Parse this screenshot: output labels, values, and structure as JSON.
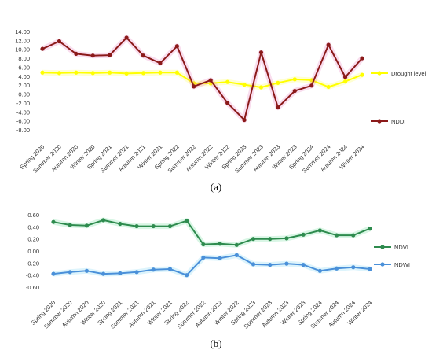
{
  "captions": {
    "a": "(a)",
    "b": "(b)"
  },
  "chart_data": [
    {
      "type": "line",
      "title": "",
      "xlabel": "",
      "ylabel": "",
      "ylim": [
        -8,
        14
      ],
      "yticks": [
        "14.00",
        "12.00",
        "10.00",
        "8.00",
        "6.00",
        "4.00",
        "2.00",
        "0.00",
        "-2.00",
        "-4.00",
        "-6.00",
        "-8.00"
      ],
      "grid": false,
      "legend": "right",
      "categories": [
        "Spring 2020",
        "Summer 2020",
        "Autumn 2020",
        "Winter 2020",
        "Spring 2021",
        "Summer 2021",
        "Autumn 2021",
        "Winter 2021",
        "Spring 2022",
        "Summer 2022",
        "Autumn 2022",
        "Winter 2022",
        "Spring 2023",
        "Summer 2023",
        "Autumn 2023",
        "Winter 2023",
        "Spring 2024",
        "Summer 2024",
        "Autumn 2024",
        "Winter 2024"
      ],
      "series": [
        {
          "name": "Drought level",
          "color": "#ffff00",
          "values": [
            4.8,
            4.7,
            4.8,
            4.7,
            4.8,
            4.6,
            4.7,
            4.8,
            4.8,
            2.4,
            2.4,
            2.7,
            2.1,
            1.5,
            2.5,
            3.3,
            3.1,
            1.6,
            2.8,
            4.3
          ]
        },
        {
          "name": "NDDI",
          "color": "#8b1a1a",
          "values": [
            10.1,
            11.8,
            9.0,
            8.6,
            8.7,
            12.6,
            8.6,
            6.9,
            10.7,
            1.7,
            3.1,
            -2.0,
            -5.8,
            9.3,
            -3.0,
            0.7,
            1.9,
            11.0,
            3.8,
            8.0
          ]
        }
      ]
    },
    {
      "type": "line",
      "title": "",
      "xlabel": "",
      "ylabel": "",
      "ylim": [
        -0.6,
        0.6
      ],
      "yticks": [
        "0.60",
        "0.40",
        "0.20",
        "0.00",
        "-0.20",
        "-0.40",
        "-0.60"
      ],
      "grid": false,
      "legend": "right",
      "categories": [
        "Spring 2020",
        "Summer 2020",
        "Autumn 2020",
        "Winter 2020",
        "Spring 2021",
        "Summer 2021",
        "Autumn 2021",
        "Winter 2021",
        "Spring 2022",
        "Summer 2022",
        "Autumn 2022",
        "Winter 2022",
        "Spring 2023",
        "Summer 2023",
        "Autumn 2023",
        "Winter 2023",
        "Spring 2024",
        "Summer 2024",
        "Autumn 2024",
        "Winter 2024"
      ],
      "series": [
        {
          "name": "NDVI",
          "color": "#2e8b4e",
          "values": [
            0.48,
            0.43,
            0.42,
            0.51,
            0.45,
            0.41,
            0.41,
            0.41,
            0.5,
            0.11,
            0.12,
            0.1,
            0.2,
            0.2,
            0.21,
            0.27,
            0.34,
            0.26,
            0.26,
            0.37
          ]
        },
        {
          "name": "NDWI",
          "color": "#4a90d9",
          "values": [
            -0.38,
            -0.35,
            -0.33,
            -0.38,
            -0.37,
            -0.35,
            -0.31,
            -0.3,
            -0.4,
            -0.11,
            -0.12,
            -0.07,
            -0.22,
            -0.23,
            -0.21,
            -0.23,
            -0.33,
            -0.29,
            -0.27,
            -0.3
          ]
        }
      ]
    }
  ]
}
